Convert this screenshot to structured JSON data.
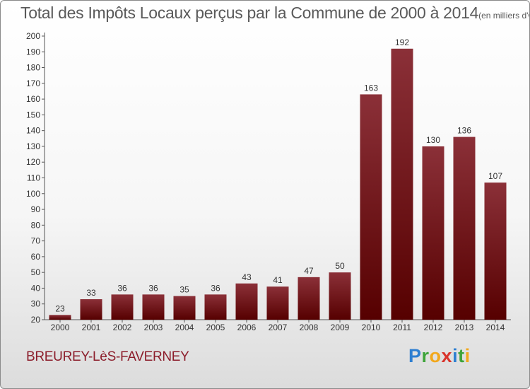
{
  "title": "Total des Impôts Locaux perçus par la Commune de 2000 à 2014",
  "unit": "(en milliers d'€)",
  "commune": "BREUREY-LèS-FAVERNEY",
  "logo": [
    "P",
    "r",
    "o",
    "x",
    "i",
    "t",
    "i"
  ],
  "colors": {
    "bar_top": "#8b3038",
    "bar_bottom": "#560000",
    "text": "#333333"
  },
  "chart_data": {
    "type": "bar",
    "categories": [
      "2000",
      "2001",
      "2002",
      "2003",
      "2004",
      "2005",
      "2006",
      "2007",
      "2008",
      "2009",
      "2010",
      "2011",
      "2012",
      "2013",
      "2014"
    ],
    "values": [
      23,
      33,
      36,
      36,
      35,
      36,
      43,
      41,
      47,
      50,
      163,
      192,
      130,
      136,
      107
    ],
    "ylim": [
      20,
      200
    ],
    "yticks": [
      20,
      30,
      40,
      50,
      60,
      70,
      80,
      90,
      100,
      110,
      120,
      130,
      140,
      150,
      160,
      170,
      180,
      190,
      200
    ],
    "grid": false,
    "legend": "none"
  }
}
